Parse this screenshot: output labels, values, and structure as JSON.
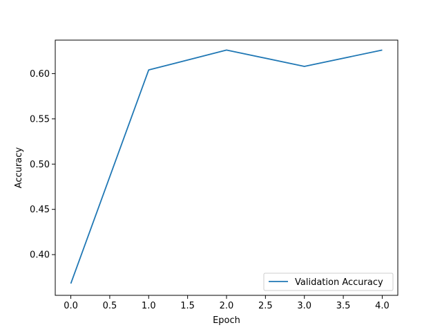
{
  "chart_data": {
    "type": "line",
    "title": "",
    "xlabel": "Epoch",
    "ylabel": "Accuracy",
    "xlim": [
      -0.2,
      4.2
    ],
    "ylim": [
      0.355,
      0.637
    ],
    "xticks": [
      "0.0",
      "0.5",
      "1.0",
      "1.5",
      "2.0",
      "2.5",
      "3.0",
      "3.5",
      "4.0"
    ],
    "yticks": [
      "0.40",
      "0.45",
      "0.50",
      "0.55",
      "0.60"
    ],
    "grid": false,
    "legend_position": "lower-right",
    "series": [
      {
        "name": "Validation Accuracy",
        "color": "#1f77b4",
        "x": [
          0,
          1,
          2,
          3,
          4
        ],
        "y": [
          0.368,
          0.604,
          0.626,
          0.608,
          0.626
        ]
      }
    ]
  }
}
